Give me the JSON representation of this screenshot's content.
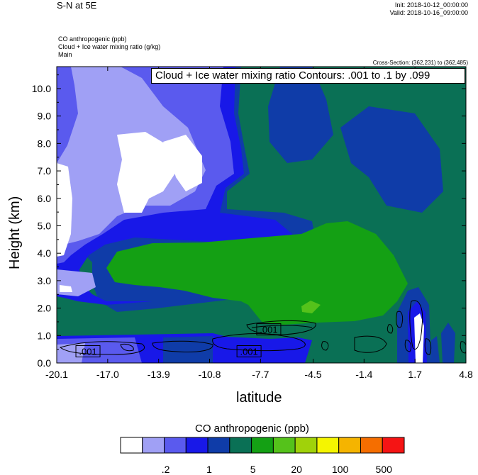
{
  "header": {
    "title": "S-N at 5E",
    "init": "Init: 2018-10-12_00:00:00",
    "valid": "Valid: 2018-10-16_09:00:00",
    "field_lines": [
      "CO anthropogenic   (ppb)",
      "Cloud + Ice water mixing ratio   (g/kg)",
      "Main"
    ],
    "cross_section": "Cross-Section: (362,231) to (362,485)",
    "contour_info": "Cloud + Ice water mixing ratio Contours: .001 to .1 by .099"
  },
  "chart_data": {
    "type": "heatmap",
    "xlabel": "latitude",
    "ylabel": "Height (km)",
    "xlim": [
      -20.1,
      4.8
    ],
    "ylim": [
      0,
      10.8
    ],
    "x_ticks": [
      "-20.1",
      "-17.0",
      "-13.9",
      "-10.8",
      "-7.7",
      "-4.5",
      "-1.4",
      "1.7",
      "4.8"
    ],
    "y_ticks": [
      "0.0",
      "1.0",
      "2.0",
      "3.0",
      "4.0",
      "5.0",
      "6.0",
      "7.0",
      "8.0",
      "9.0",
      "10.0"
    ],
    "contour_labels": [
      {
        "text": ".001",
        "x": -18.2,
        "y": 0.4
      },
      {
        "text": ".001",
        "x": -8.4,
        "y": 0.4
      },
      {
        "text": ".001",
        "x": -7.2,
        "y": 1.2
      }
    ],
    "colorbar": {
      "title": "CO anthropogenic  (ppb)",
      "colors": [
        "#ffffff",
        "#a0a0f5",
        "#5a5aee",
        "#1818e8",
        "#0f3ca8",
        "#0a7055",
        "#14a014",
        "#55c21b",
        "#a0d20a",
        "#f5f500",
        "#f5b400",
        "#f56e00",
        "#f51414"
      ],
      "labels": [
        ".2",
        "1",
        "5",
        "20",
        "100",
        "500"
      ]
    }
  }
}
